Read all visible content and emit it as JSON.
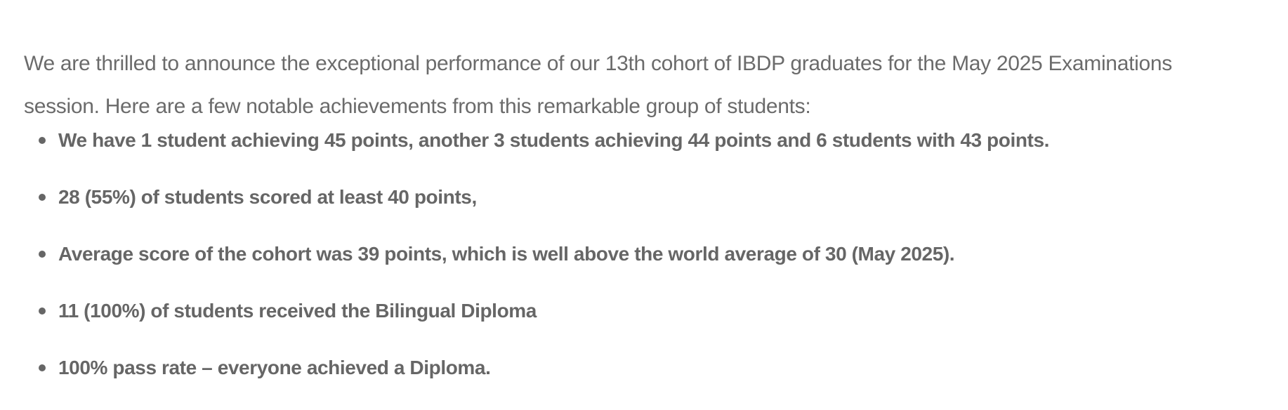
{
  "intro": {
    "line1": "We are thrilled to announce the exceptional performance of our 13th cohort of IBDP graduates for the May 2025 Examinations",
    "line2": "session. Here are a few notable achievements from this remarkable group of students:"
  },
  "achievements": [
    "We have 1 student achieving 45 points, another 3 students achieving 44 points and 6 students with 43 points.",
    "28 (55%) of students scored at least 40 points,",
    "Average score of the cohort was 39 points, which is well above the world average of 30 (May 2025).",
    "11 (100%) of students received the Bilingual Diploma",
    "100% pass rate – everyone achieved a Diploma."
  ]
}
